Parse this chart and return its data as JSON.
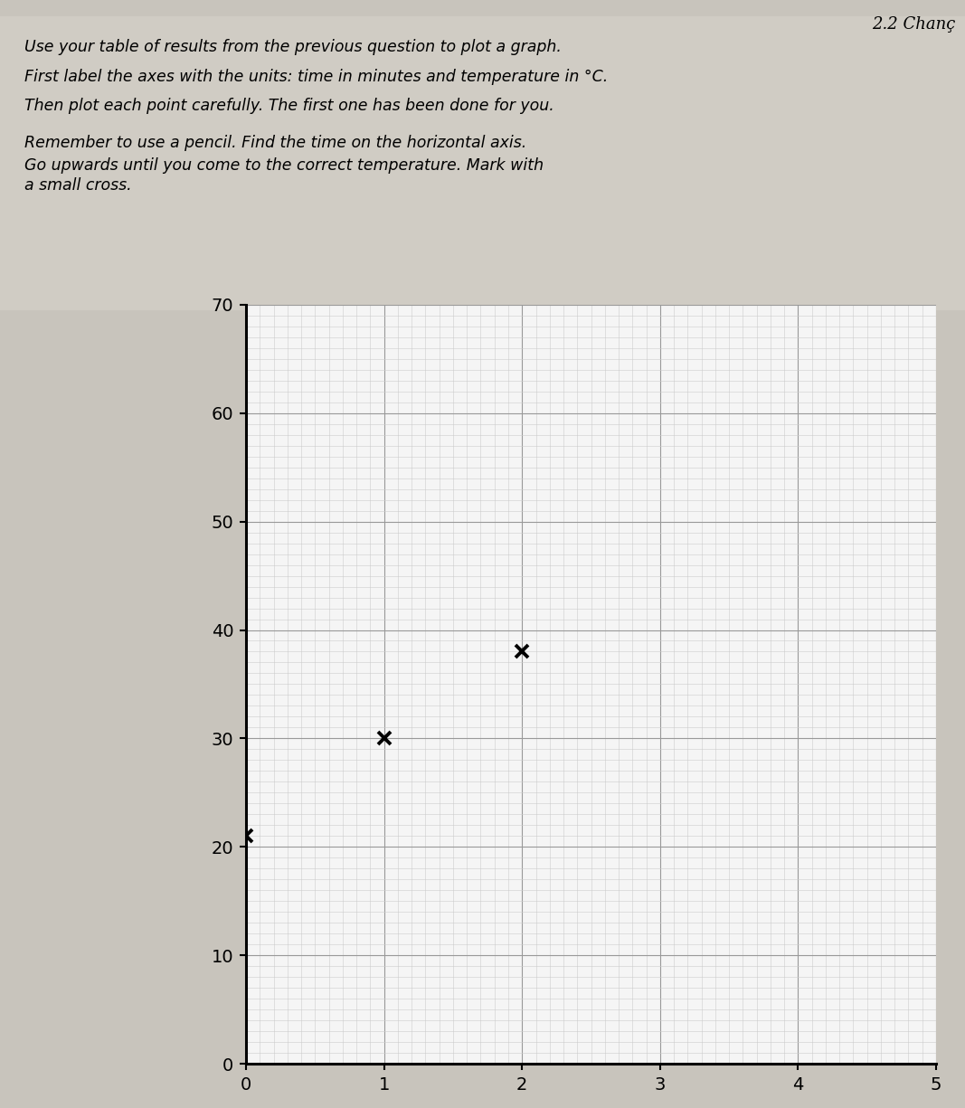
{
  "title": "2.2 Chanç",
  "instruction_lines": [
    "Use your table of results from the previous question to plot a graph.",
    "First label the axes with the ·units·: time in minutes and temperature in °C.",
    "Then plot each point carefully. The first one has been done for you.",
    "Remember to use a pencil. Find the time on the horizontal axis.",
    "Go upwards until you come to the correct temperature. Mark with",
    "a small cross."
  ],
  "instruction_lines_display": [
    "Use your table of results from the previous question to plot a graph.",
    "First label the axes with the units: time in minutes and temperature in °C.",
    "Then plot each point carefully. The first one has been done for you.",
    "Remember to use a pencil. Find the time on the horizontal axis.",
    "Go upwards until you come to the correct temperature. Mark with",
    "a small cross."
  ],
  "xlim": [
    0,
    5
  ],
  "ylim": [
    0,
    70
  ],
  "xticks": [
    0,
    1,
    2,
    3,
    4,
    5
  ],
  "yticks": [
    0,
    10,
    20,
    30,
    40,
    50,
    60,
    70
  ],
  "data_points": [
    [
      0,
      21
    ],
    [
      1,
      30
    ],
    [
      2,
      38
    ]
  ],
  "grid_major_color": "#999999",
  "grid_minor_color": "#cccccc",
  "plot_bg_color": "#f5f5f5",
  "page_bg_color": "#c8c4bc",
  "text_area_bg": "#d8d4cc",
  "marker_color": "black",
  "marker_size": 10,
  "axis_linewidth": 2.2,
  "tick_label_fontsize": 14,
  "instruction_fontsize": 12.5,
  "title_fontsize": 13
}
